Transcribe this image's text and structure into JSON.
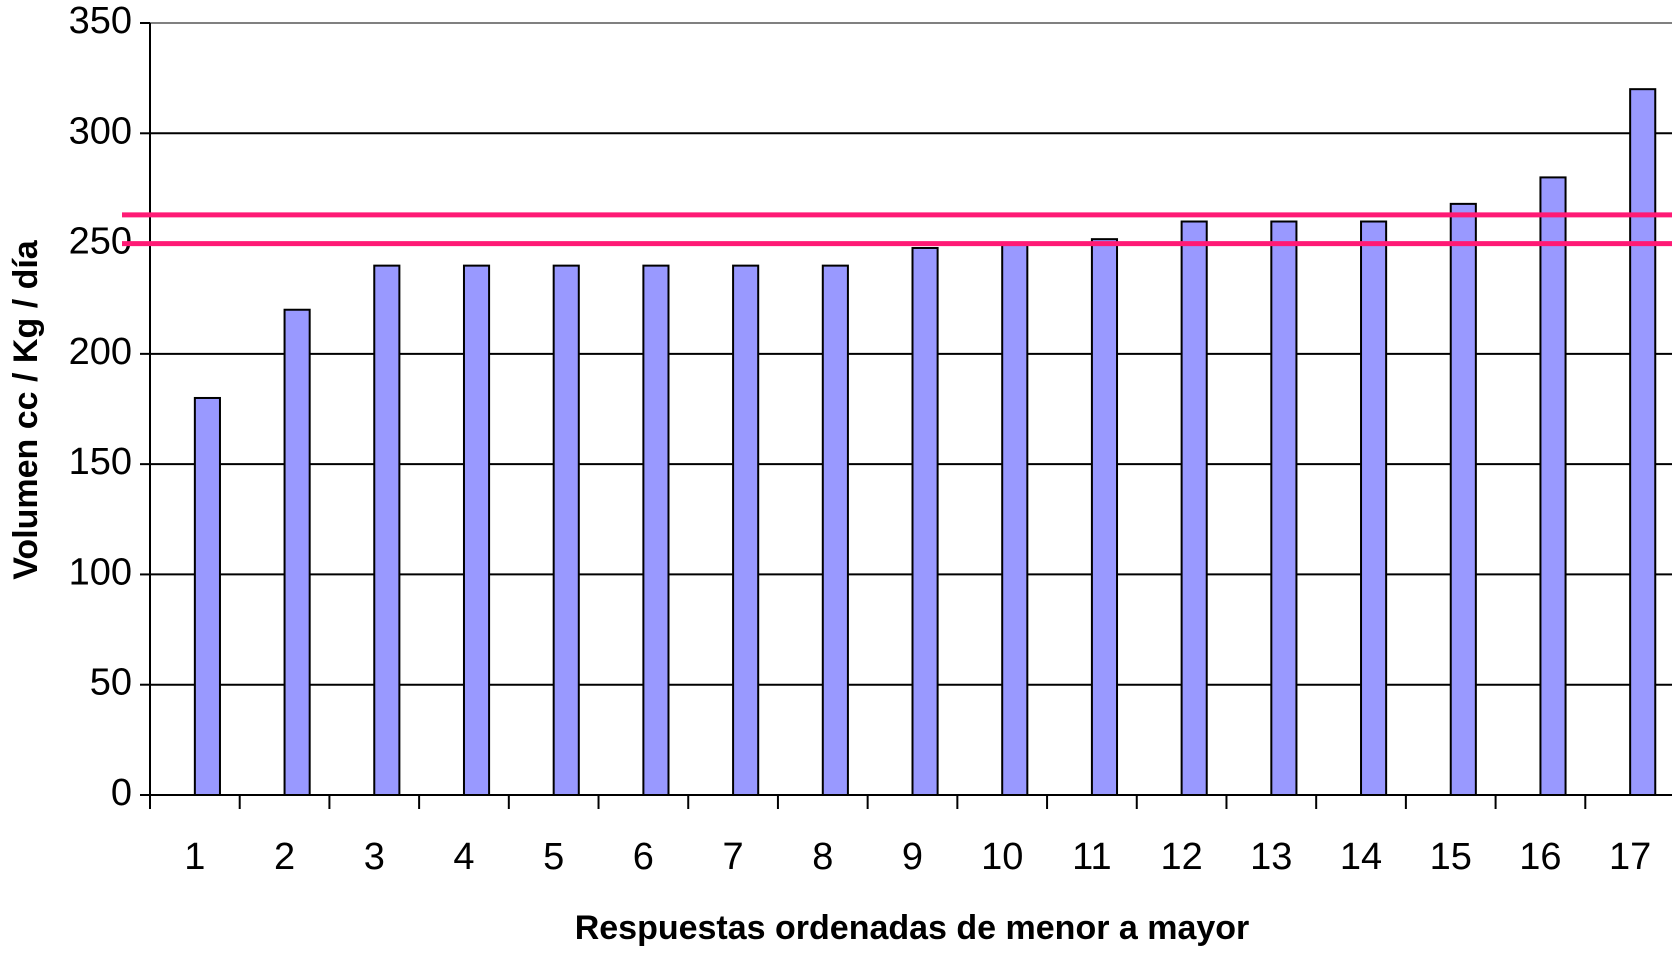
{
  "chart_data": {
    "type": "bar",
    "xlabel": "Respuestas ordenadas de menor a mayor",
    "ylabel": "Volumen cc / Kg / día",
    "categories": [
      "1",
      "2",
      "3",
      "4",
      "5",
      "6",
      "7",
      "8",
      "9",
      "10",
      "11",
      "12",
      "13",
      "14",
      "15",
      "16",
      "17"
    ],
    "values": [
      180,
      220,
      240,
      240,
      240,
      240,
      240,
      240,
      248,
      250,
      252,
      260,
      260,
      260,
      268,
      280,
      320
    ],
    "color": "#9999ff",
    "reference_lines": [
      263,
      250
    ],
    "reference_color": "#ff1a75",
    "ylim": [
      0,
      350
    ],
    "yticks": [
      0,
      50,
      100,
      150,
      200,
      250,
      300,
      350
    ],
    "grid": true
  }
}
